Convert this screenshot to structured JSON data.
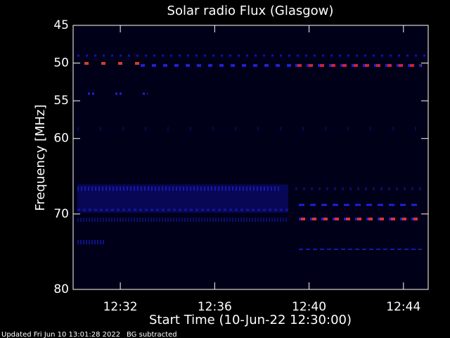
{
  "chart_data": {
    "type": "spectrogram",
    "title": "Solar radio Flux (Glasgow)",
    "x_label": "Start Time (10-Jun-22 12:30:00)",
    "y_label": "Frequency [MHz]",
    "xlim": [
      "12:30:00",
      "12:45:03"
    ],
    "xticks": [
      "12:32",
      "12:36",
      "12:40",
      "12:44"
    ],
    "ylim": [
      45,
      80
    ],
    "y_inverted": true,
    "yticks": [
      45,
      50,
      55,
      60,
      70,
      80
    ],
    "footer": [
      "Updated Fri Jun 10 13:01:28 2022",
      "BG subtracted"
    ]
  }
}
